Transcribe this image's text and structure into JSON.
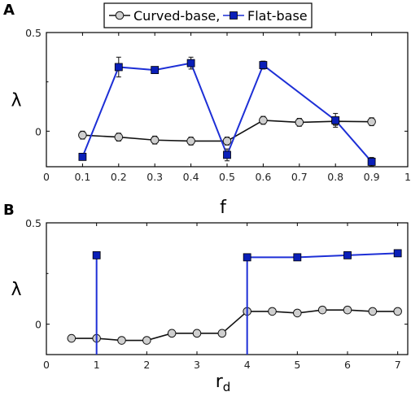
{
  "panels": [
    {
      "letter": "A"
    },
    {
      "letter": "B"
    }
  ],
  "legend": {
    "entries": [
      "Curved-base,",
      "Flat-base"
    ]
  },
  "colors": {
    "curved_line": "#111111",
    "curved_marker_fill": "#cfcfcf",
    "flat_line": "#1d2fd6",
    "flat_marker_fill": "#0a1fb8",
    "error_bar": "#222222"
  },
  "chart_data": [
    {
      "type": "line",
      "panel": "A",
      "xlabel": "f",
      "ylabel": "λ",
      "xlim": [
        0,
        1
      ],
      "ylim": [
        -0.18,
        0.5
      ],
      "xticks": [
        "0",
        "0.1",
        "0.2",
        "0.3",
        "0.4",
        "0.5",
        "0.6",
        "0.7",
        "0.8",
        "0.9",
        "1"
      ],
      "xtick_values": [
        0,
        0.1,
        0.2,
        0.3,
        0.4,
        0.5,
        0.6,
        0.7,
        0.8,
        0.9,
        1
      ],
      "yticks": [
        "0",
        "0.5"
      ],
      "ytick_values": [
        0,
        0.5
      ],
      "series": [
        {
          "name": "Curved-base",
          "x": [
            0.1,
            0.2,
            0.3,
            0.4,
            0.5,
            0.6,
            0.7,
            0.8,
            0.9
          ],
          "y": [
            -0.02,
            -0.03,
            -0.045,
            -0.05,
            -0.05,
            0.055,
            0.045,
            0.05,
            0.048
          ],
          "err": [
            0.02,
            0.02,
            0.02,
            0.02,
            0.02,
            0.02,
            0.02,
            0.02,
            0.02
          ]
        },
        {
          "name": "Flat-base",
          "x": [
            0.1,
            0.2,
            0.3,
            0.4,
            0.5,
            0.6,
            0.7,
            0.8,
            0.9
          ],
          "y": [
            -0.13,
            0.325,
            0.31,
            0.345,
            -0.12,
            0.335,
            null,
            0.055,
            -0.155
          ],
          "err": [
            0.01,
            0.05,
            0.012,
            0.03,
            0.03,
            0.02,
            null,
            0.035,
            0.022
          ]
        }
      ]
    },
    {
      "type": "line",
      "panel": "B",
      "xlabel": "r",
      "xlabel_sub": "d",
      "ylabel": "λ",
      "xlim": [
        0,
        7.2
      ],
      "ylim": [
        -0.15,
        0.5
      ],
      "xticks": [
        "0",
        "1",
        "2",
        "3",
        "4",
        "5",
        "6",
        "7"
      ],
      "xtick_values": [
        0,
        1,
        2,
        3,
        4,
        5,
        6,
        7
      ],
      "yticks": [
        "0",
        "0.5"
      ],
      "ytick_values": [
        0,
        0.5
      ],
      "series": [
        {
          "name": "Curved-base",
          "x": [
            0.5,
            1.0,
            1.5,
            2.0,
            2.5,
            3.0,
            3.5,
            4.0,
            4.5,
            5.0,
            5.5,
            6.0,
            6.5,
            7.0
          ],
          "y": [
            -0.07,
            -0.07,
            -0.08,
            -0.08,
            -0.045,
            -0.045,
            -0.045,
            0.063,
            0.063,
            0.055,
            0.07,
            0.07,
            0.063,
            0.063
          ],
          "err": [
            0.012,
            0.012,
            0.012,
            0.012,
            0.012,
            0.012,
            0.012,
            0.012,
            0.012,
            0.012,
            0.012,
            0.012,
            0.012,
            0.012
          ]
        },
        {
          "name": "Flat-base",
          "x": [
            1.0,
            4.0,
            5.0,
            6.0,
            7.0
          ],
          "y": [
            0.34,
            0.33,
            0.33,
            0.34,
            0.35
          ],
          "err": [
            0.015,
            0.015,
            0.015,
            0.015,
            0.015
          ],
          "drops": [
            1.0,
            4.0
          ]
        }
      ]
    }
  ]
}
